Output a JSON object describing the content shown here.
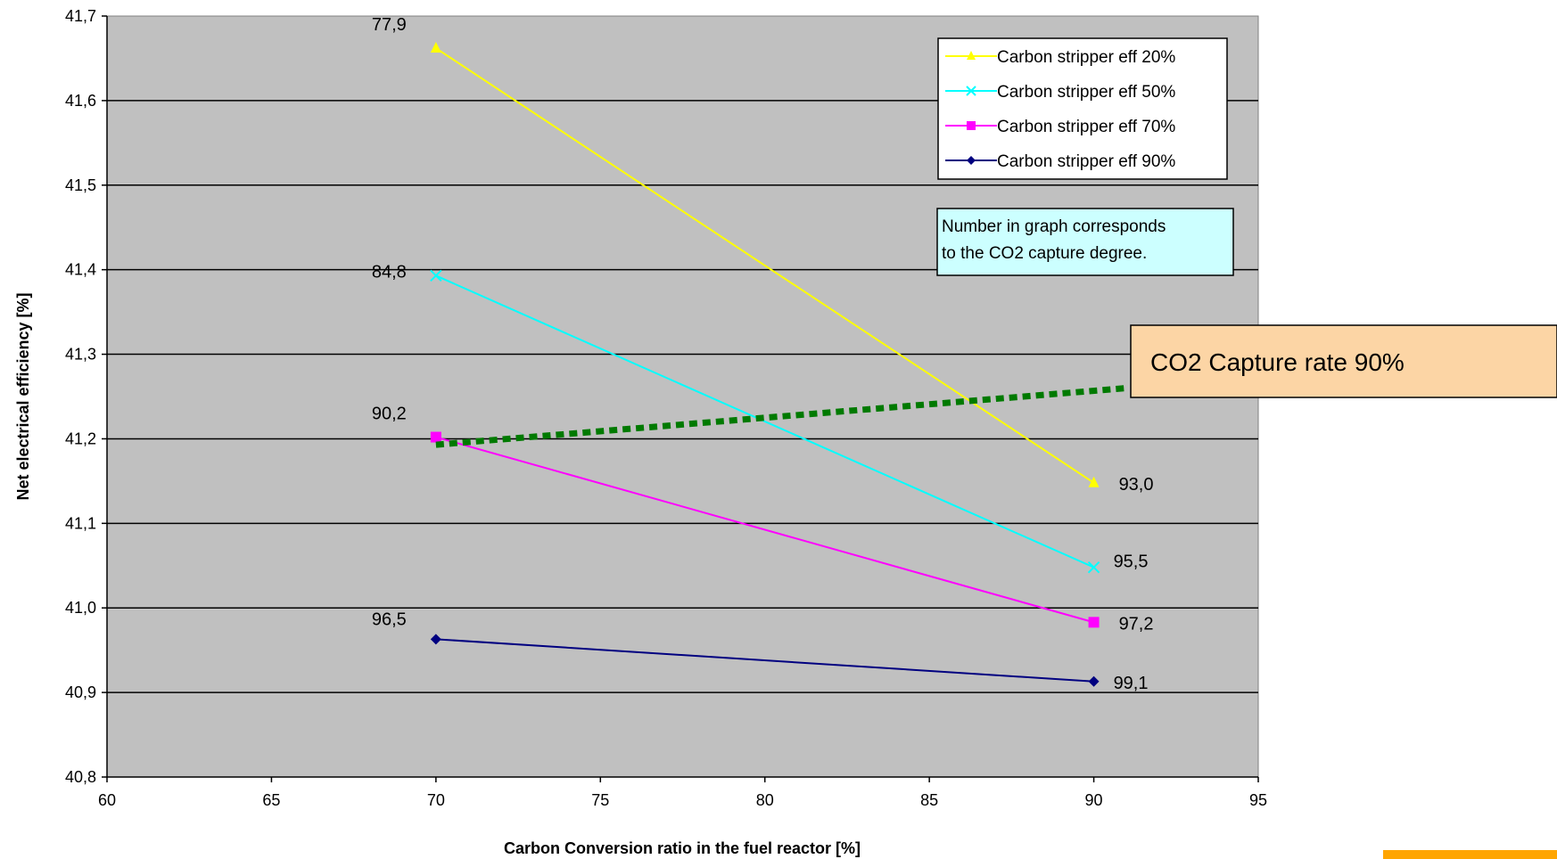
{
  "chart_data": {
    "type": "line",
    "xlabel": "Carbon Conversion ratio in the  fuel reactor [%]",
    "ylabel": "Net electrical efficiency [%]",
    "xlim": [
      60,
      95
    ],
    "ylim": [
      40.8,
      41.7
    ],
    "x_ticks": [
      "60",
      "65",
      "70",
      "75",
      "80",
      "85",
      "90",
      "95"
    ],
    "y_ticks": [
      "40,8",
      "40,9",
      "41,0",
      "41,1",
      "41,2",
      "41,3",
      "41,4",
      "41,5",
      "41,6",
      "41,7"
    ],
    "grid": "horizontal",
    "plot_background": "#c0c0c0",
    "legend_position": "top-right",
    "series": [
      {
        "name": "Carbon stripper eff 20%",
        "color": "#ffff00",
        "marker": "triangle",
        "x": [
          70,
          90
        ],
        "y": [
          41.662,
          41.148
        ],
        "point_labels": [
          "77,9",
          "93,0"
        ]
      },
      {
        "name": "Carbon stripper eff 50%",
        "color": "#00ffff",
        "marker": "x",
        "x": [
          70,
          90
        ],
        "y": [
          41.393,
          41.048
        ],
        "point_labels": [
          "84,8",
          "95,5"
        ]
      },
      {
        "name": "Carbon stripper eff 70%",
        "color": "#ff00ff",
        "marker": "square",
        "x": [
          70,
          90
        ],
        "y": [
          41.202,
          40.983
        ],
        "point_labels": [
          "90,2",
          "97,2"
        ]
      },
      {
        "name": "Carbon stripper eff 90%",
        "color": "#000080",
        "marker": "diamond",
        "x": [
          70,
          90
        ],
        "y": [
          40.963,
          40.913
        ],
        "point_labels": [
          "96,5",
          "99,1"
        ]
      }
    ],
    "annotations": {
      "note_lines": [
        "Number in graph corresponds",
        "to the CO2 capture degree."
      ],
      "callout": "CO2 Capture rate 90%",
      "capture_line": {
        "color": "#007a00",
        "x": [
          70,
          91
        ],
        "y": [
          41.193,
          41.26
        ]
      }
    },
    "colors": {
      "note_box": "#ccffff",
      "callout_box": "#fcd5a5",
      "accent": "#ffa500"
    }
  }
}
